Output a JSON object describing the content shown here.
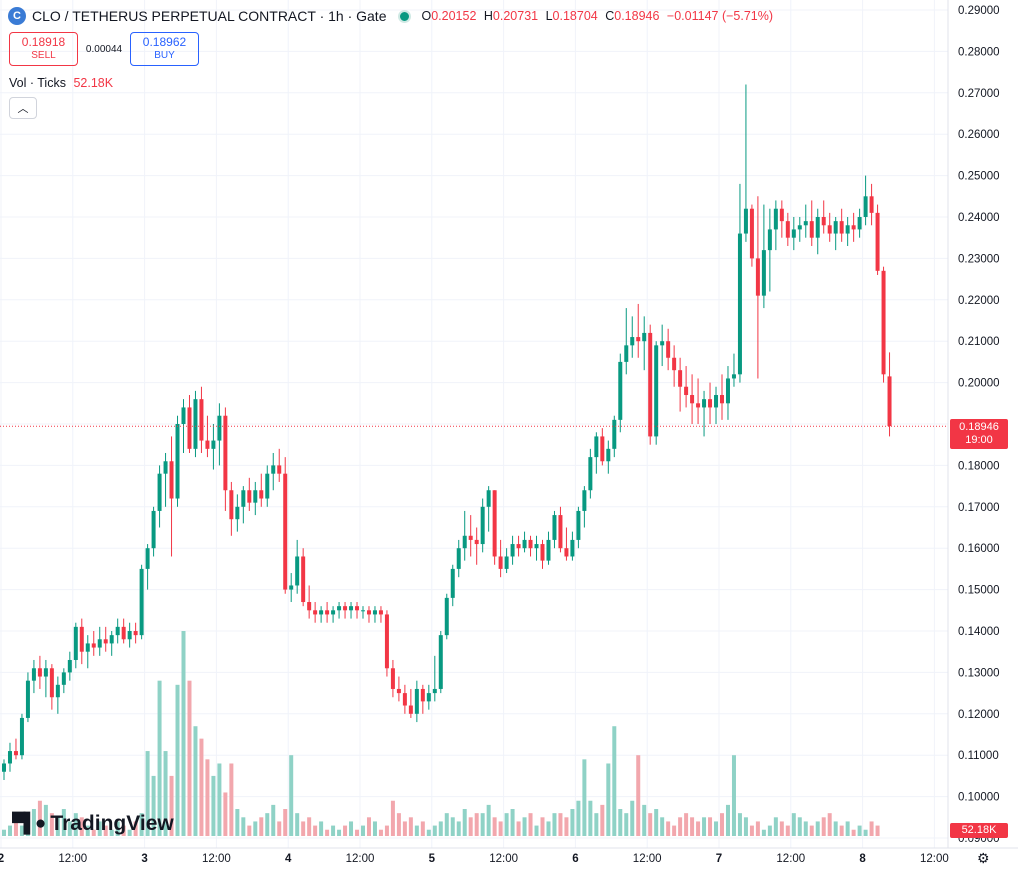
{
  "header": {
    "symbol_icon": "C",
    "title": "CLO / TETHERUS PERPETUAL CONTRACT · 1h · Gate",
    "o_label": "O",
    "o_value": "0.20152",
    "h_label": "H",
    "h_value": "0.20731",
    "l_label": "L",
    "l_value": "0.18704",
    "c_label": "C",
    "c_value": "0.18946",
    "change": "−0.01147 (−5.71%)"
  },
  "trade": {
    "sell_price": "0.18918",
    "sell_label": "SELL",
    "spread": "0.00044",
    "buy_price": "0.18962",
    "buy_label": "BUY"
  },
  "volume": {
    "label": "Vol · Ticks",
    "value": "52.18K"
  },
  "collapse_icon": "chevron-up-icon",
  "brand": {
    "logo_text": "TradingView"
  },
  "last_price": {
    "price": "0.18946",
    "countdown": "19:00"
  },
  "volume_tag": "52.18K",
  "colors": {
    "up": "#089981",
    "down": "#f23645",
    "up_vol": "#8fd2c6",
    "down_vol": "#f2a7ad",
    "grid": "#f0f3fa"
  },
  "chart_data": {
    "type": "candlestick",
    "y_ticks": [
      "0.29000",
      "0.28000",
      "0.27000",
      "0.26000",
      "0.25000",
      "0.24000",
      "0.23000",
      "0.22000",
      "0.21000",
      "0.20000",
      "0.19000",
      "0.18000",
      "0.17000",
      "0.16000",
      "0.15000",
      "0.14000",
      "0.13000",
      "0.12000",
      "0.11000",
      "0.10000",
      "0.09000"
    ],
    "x_ticks": [
      "2",
      "12:00",
      "3",
      "12:00",
      "4",
      "12:00",
      "5",
      "12:00",
      "6",
      "12:00",
      "7",
      "12:00",
      "8",
      "12:00"
    ],
    "ylim": [
      0.09,
      0.29
    ],
    "series": [
      {
        "o": 0.106,
        "h": 0.109,
        "l": 0.104,
        "c": 0.108
      },
      {
        "o": 0.108,
        "h": 0.113,
        "l": 0.106,
        "c": 0.111
      },
      {
        "o": 0.111,
        "h": 0.114,
        "l": 0.109,
        "c": 0.11
      },
      {
        "o": 0.11,
        "h": 0.12,
        "l": 0.109,
        "c": 0.119
      },
      {
        "o": 0.119,
        "h": 0.13,
        "l": 0.118,
        "c": 0.128
      },
      {
        "o": 0.128,
        "h": 0.133,
        "l": 0.125,
        "c": 0.131
      },
      {
        "o": 0.131,
        "h": 0.134,
        "l": 0.126,
        "c": 0.129
      },
      {
        "o": 0.129,
        "h": 0.133,
        "l": 0.124,
        "c": 0.131
      },
      {
        "o": 0.131,
        "h": 0.132,
        "l": 0.121,
        "c": 0.124
      },
      {
        "o": 0.124,
        "h": 0.129,
        "l": 0.12,
        "c": 0.127
      },
      {
        "o": 0.127,
        "h": 0.131,
        "l": 0.125,
        "c": 0.13
      },
      {
        "o": 0.13,
        "h": 0.135,
        "l": 0.128,
        "c": 0.133
      },
      {
        "o": 0.133,
        "h": 0.142,
        "l": 0.131,
        "c": 0.141
      },
      {
        "o": 0.141,
        "h": 0.143,
        "l": 0.132,
        "c": 0.135
      },
      {
        "o": 0.135,
        "h": 0.139,
        "l": 0.131,
        "c": 0.137
      },
      {
        "o": 0.137,
        "h": 0.14,
        "l": 0.134,
        "c": 0.136
      },
      {
        "o": 0.136,
        "h": 0.141,
        "l": 0.134,
        "c": 0.138
      },
      {
        "o": 0.138,
        "h": 0.141,
        "l": 0.135,
        "c": 0.137
      },
      {
        "o": 0.137,
        "h": 0.14,
        "l": 0.134,
        "c": 0.139
      },
      {
        "o": 0.139,
        "h": 0.143,
        "l": 0.137,
        "c": 0.141
      },
      {
        "o": 0.141,
        "h": 0.143,
        "l": 0.137,
        "c": 0.138
      },
      {
        "o": 0.138,
        "h": 0.142,
        "l": 0.136,
        "c": 0.14
      },
      {
        "o": 0.14,
        "h": 0.142,
        "l": 0.137,
        "c": 0.139
      },
      {
        "o": 0.139,
        "h": 0.156,
        "l": 0.138,
        "c": 0.155
      },
      {
        "o": 0.155,
        "h": 0.161,
        "l": 0.15,
        "c": 0.16
      },
      {
        "o": 0.16,
        "h": 0.17,
        "l": 0.158,
        "c": 0.169
      },
      {
        "o": 0.169,
        "h": 0.18,
        "l": 0.165,
        "c": 0.178
      },
      {
        "o": 0.178,
        "h": 0.183,
        "l": 0.17,
        "c": 0.181
      },
      {
        "o": 0.181,
        "h": 0.187,
        "l": 0.158,
        "c": 0.172
      },
      {
        "o": 0.172,
        "h": 0.192,
        "l": 0.17,
        "c": 0.19
      },
      {
        "o": 0.19,
        "h": 0.196,
        "l": 0.183,
        "c": 0.194
      },
      {
        "o": 0.194,
        "h": 0.197,
        "l": 0.183,
        "c": 0.184
      },
      {
        "o": 0.184,
        "h": 0.198,
        "l": 0.182,
        "c": 0.196
      },
      {
        "o": 0.196,
        "h": 0.199,
        "l": 0.183,
        "c": 0.186
      },
      {
        "o": 0.186,
        "h": 0.192,
        "l": 0.182,
        "c": 0.184
      },
      {
        "o": 0.184,
        "h": 0.19,
        "l": 0.179,
        "c": 0.186
      },
      {
        "o": 0.186,
        "h": 0.195,
        "l": 0.18,
        "c": 0.192
      },
      {
        "o": 0.192,
        "h": 0.194,
        "l": 0.169,
        "c": 0.174
      },
      {
        "o": 0.174,
        "h": 0.176,
        "l": 0.163,
        "c": 0.167
      },
      {
        "o": 0.167,
        "h": 0.173,
        "l": 0.164,
        "c": 0.17
      },
      {
        "o": 0.17,
        "h": 0.175,
        "l": 0.166,
        "c": 0.174
      },
      {
        "o": 0.174,
        "h": 0.177,
        "l": 0.169,
        "c": 0.171
      },
      {
        "o": 0.171,
        "h": 0.176,
        "l": 0.168,
        "c": 0.174
      },
      {
        "o": 0.174,
        "h": 0.178,
        "l": 0.17,
        "c": 0.172
      },
      {
        "o": 0.172,
        "h": 0.18,
        "l": 0.17,
        "c": 0.178
      },
      {
        "o": 0.178,
        "h": 0.183,
        "l": 0.174,
        "c": 0.18
      },
      {
        "o": 0.18,
        "h": 0.184,
        "l": 0.176,
        "c": 0.178
      },
      {
        "o": 0.178,
        "h": 0.182,
        "l": 0.149,
        "c": 0.15
      },
      {
        "o": 0.15,
        "h": 0.154,
        "l": 0.147,
        "c": 0.151
      },
      {
        "o": 0.151,
        "h": 0.162,
        "l": 0.149,
        "c": 0.158
      },
      {
        "o": 0.158,
        "h": 0.16,
        "l": 0.146,
        "c": 0.147
      },
      {
        "o": 0.147,
        "h": 0.151,
        "l": 0.143,
        "c": 0.145
      },
      {
        "o": 0.145,
        "h": 0.147,
        "l": 0.142,
        "c": 0.144
      },
      {
        "o": 0.144,
        "h": 0.146,
        "l": 0.142,
        "c": 0.145
      },
      {
        "o": 0.145,
        "h": 0.147,
        "l": 0.142,
        "c": 0.144
      },
      {
        "o": 0.144,
        "h": 0.146,
        "l": 0.142,
        "c": 0.145
      },
      {
        "o": 0.145,
        "h": 0.147,
        "l": 0.143,
        "c": 0.146
      },
      {
        "o": 0.146,
        "h": 0.147,
        "l": 0.143,
        "c": 0.145
      },
      {
        "o": 0.145,
        "h": 0.147,
        "l": 0.143,
        "c": 0.146
      },
      {
        "o": 0.146,
        "h": 0.147,
        "l": 0.143,
        "c": 0.145
      },
      {
        "o": 0.145,
        "h": 0.146,
        "l": 0.143,
        "c": 0.145
      },
      {
        "o": 0.145,
        "h": 0.146,
        "l": 0.142,
        "c": 0.144
      },
      {
        "o": 0.144,
        "h": 0.146,
        "l": 0.142,
        "c": 0.145
      },
      {
        "o": 0.145,
        "h": 0.146,
        "l": 0.142,
        "c": 0.144
      },
      {
        "o": 0.144,
        "h": 0.145,
        "l": 0.129,
        "c": 0.131
      },
      {
        "o": 0.131,
        "h": 0.133,
        "l": 0.124,
        "c": 0.126
      },
      {
        "o": 0.126,
        "h": 0.129,
        "l": 0.123,
        "c": 0.125
      },
      {
        "o": 0.125,
        "h": 0.127,
        "l": 0.12,
        "c": 0.122
      },
      {
        "o": 0.122,
        "h": 0.126,
        "l": 0.119,
        "c": 0.12
      },
      {
        "o": 0.12,
        "h": 0.128,
        "l": 0.118,
        "c": 0.126
      },
      {
        "o": 0.126,
        "h": 0.127,
        "l": 0.12,
        "c": 0.123
      },
      {
        "o": 0.123,
        "h": 0.127,
        "l": 0.121,
        "c": 0.125
      },
      {
        "o": 0.125,
        "h": 0.134,
        "l": 0.123,
        "c": 0.126
      },
      {
        "o": 0.126,
        "h": 0.14,
        "l": 0.125,
        "c": 0.139
      },
      {
        "o": 0.139,
        "h": 0.149,
        "l": 0.138,
        "c": 0.148
      },
      {
        "o": 0.148,
        "h": 0.156,
        "l": 0.146,
        "c": 0.155
      },
      {
        "o": 0.155,
        "h": 0.162,
        "l": 0.153,
        "c": 0.16
      },
      {
        "o": 0.16,
        "h": 0.169,
        "l": 0.157,
        "c": 0.163
      },
      {
        "o": 0.163,
        "h": 0.168,
        "l": 0.158,
        "c": 0.162
      },
      {
        "o": 0.162,
        "h": 0.165,
        "l": 0.156,
        "c": 0.161
      },
      {
        "o": 0.161,
        "h": 0.172,
        "l": 0.159,
        "c": 0.17
      },
      {
        "o": 0.17,
        "h": 0.175,
        "l": 0.164,
        "c": 0.174
      },
      {
        "o": 0.174,
        "h": 0.174,
        "l": 0.156,
        "c": 0.158
      },
      {
        "o": 0.158,
        "h": 0.162,
        "l": 0.153,
        "c": 0.155
      },
      {
        "o": 0.155,
        "h": 0.16,
        "l": 0.154,
        "c": 0.158
      },
      {
        "o": 0.158,
        "h": 0.163,
        "l": 0.156,
        "c": 0.161
      },
      {
        "o": 0.161,
        "h": 0.163,
        "l": 0.158,
        "c": 0.16
      },
      {
        "o": 0.16,
        "h": 0.164,
        "l": 0.159,
        "c": 0.162
      },
      {
        "o": 0.162,
        "h": 0.163,
        "l": 0.158,
        "c": 0.16
      },
      {
        "o": 0.16,
        "h": 0.163,
        "l": 0.157,
        "c": 0.161
      },
      {
        "o": 0.161,
        "h": 0.162,
        "l": 0.155,
        "c": 0.157
      },
      {
        "o": 0.157,
        "h": 0.164,
        "l": 0.156,
        "c": 0.162
      },
      {
        "o": 0.162,
        "h": 0.169,
        "l": 0.16,
        "c": 0.168
      },
      {
        "o": 0.168,
        "h": 0.17,
        "l": 0.159,
        "c": 0.16
      },
      {
        "o": 0.16,
        "h": 0.165,
        "l": 0.157,
        "c": 0.158
      },
      {
        "o": 0.158,
        "h": 0.164,
        "l": 0.157,
        "c": 0.162
      },
      {
        "o": 0.162,
        "h": 0.17,
        "l": 0.16,
        "c": 0.169
      },
      {
        "o": 0.169,
        "h": 0.175,
        "l": 0.165,
        "c": 0.174
      },
      {
        "o": 0.174,
        "h": 0.184,
        "l": 0.172,
        "c": 0.182
      },
      {
        "o": 0.182,
        "h": 0.188,
        "l": 0.178,
        "c": 0.187
      },
      {
        "o": 0.187,
        "h": 0.189,
        "l": 0.18,
        "c": 0.181
      },
      {
        "o": 0.181,
        "h": 0.186,
        "l": 0.178,
        "c": 0.184
      },
      {
        "o": 0.184,
        "h": 0.192,
        "l": 0.182,
        "c": 0.191
      },
      {
        "o": 0.191,
        "h": 0.207,
        "l": 0.188,
        "c": 0.205
      },
      {
        "o": 0.205,
        "h": 0.218,
        "l": 0.202,
        "c": 0.209
      },
      {
        "o": 0.209,
        "h": 0.216,
        "l": 0.206,
        "c": 0.211
      },
      {
        "o": 0.211,
        "h": 0.219,
        "l": 0.206,
        "c": 0.21
      },
      {
        "o": 0.21,
        "h": 0.216,
        "l": 0.203,
        "c": 0.212
      },
      {
        "o": 0.212,
        "h": 0.214,
        "l": 0.185,
        "c": 0.187
      },
      {
        "o": 0.187,
        "h": 0.21,
        "l": 0.185,
        "c": 0.209
      },
      {
        "o": 0.209,
        "h": 0.214,
        "l": 0.204,
        "c": 0.21
      },
      {
        "o": 0.21,
        "h": 0.213,
        "l": 0.203,
        "c": 0.206
      },
      {
        "o": 0.206,
        "h": 0.209,
        "l": 0.199,
        "c": 0.203
      },
      {
        "o": 0.203,
        "h": 0.206,
        "l": 0.193,
        "c": 0.199
      },
      {
        "o": 0.199,
        "h": 0.204,
        "l": 0.194,
        "c": 0.197
      },
      {
        "o": 0.197,
        "h": 0.202,
        "l": 0.19,
        "c": 0.195
      },
      {
        "o": 0.195,
        "h": 0.201,
        "l": 0.19,
        "c": 0.194
      },
      {
        "o": 0.194,
        "h": 0.198,
        "l": 0.187,
        "c": 0.196
      },
      {
        "o": 0.196,
        "h": 0.2,
        "l": 0.19,
        "c": 0.194
      },
      {
        "o": 0.194,
        "h": 0.199,
        "l": 0.19,
        "c": 0.197
      },
      {
        "o": 0.197,
        "h": 0.202,
        "l": 0.191,
        "c": 0.195
      },
      {
        "o": 0.195,
        "h": 0.204,
        "l": 0.191,
        "c": 0.201
      },
      {
        "o": 0.201,
        "h": 0.207,
        "l": 0.199,
        "c": 0.202
      },
      {
        "o": 0.202,
        "h": 0.248,
        "l": 0.2,
        "c": 0.236
      },
      {
        "o": 0.236,
        "h": 0.272,
        "l": 0.234,
        "c": 0.242
      },
      {
        "o": 0.242,
        "h": 0.243,
        "l": 0.228,
        "c": 0.23
      },
      {
        "o": 0.23,
        "h": 0.245,
        "l": 0.201,
        "c": 0.221
      },
      {
        "o": 0.221,
        "h": 0.243,
        "l": 0.218,
        "c": 0.232
      },
      {
        "o": 0.232,
        "h": 0.242,
        "l": 0.222,
        "c": 0.237
      },
      {
        "o": 0.237,
        "h": 0.244,
        "l": 0.232,
        "c": 0.242
      },
      {
        "o": 0.242,
        "h": 0.244,
        "l": 0.235,
        "c": 0.239
      },
      {
        "o": 0.239,
        "h": 0.241,
        "l": 0.233,
        "c": 0.235
      },
      {
        "o": 0.235,
        "h": 0.24,
        "l": 0.232,
        "c": 0.237
      },
      {
        "o": 0.237,
        "h": 0.24,
        "l": 0.234,
        "c": 0.238
      },
      {
        "o": 0.238,
        "h": 0.243,
        "l": 0.235,
        "c": 0.239
      },
      {
        "o": 0.239,
        "h": 0.244,
        "l": 0.233,
        "c": 0.235
      },
      {
        "o": 0.235,
        "h": 0.242,
        "l": 0.231,
        "c": 0.24
      },
      {
        "o": 0.24,
        "h": 0.244,
        "l": 0.236,
        "c": 0.238
      },
      {
        "o": 0.238,
        "h": 0.241,
        "l": 0.234,
        "c": 0.236
      },
      {
        "o": 0.236,
        "h": 0.24,
        "l": 0.232,
        "c": 0.239
      },
      {
        "o": 0.239,
        "h": 0.242,
        "l": 0.234,
        "c": 0.236
      },
      {
        "o": 0.236,
        "h": 0.24,
        "l": 0.233,
        "c": 0.238
      },
      {
        "o": 0.238,
        "h": 0.241,
        "l": 0.234,
        "c": 0.237
      },
      {
        "o": 0.237,
        "h": 0.242,
        "l": 0.235,
        "c": 0.24
      },
      {
        "o": 0.24,
        "h": 0.25,
        "l": 0.238,
        "c": 0.245
      },
      {
        "o": 0.245,
        "h": 0.248,
        "l": 0.238,
        "c": 0.241
      },
      {
        "o": 0.241,
        "h": 0.243,
        "l": 0.226,
        "c": 0.227
      },
      {
        "o": 0.227,
        "h": 0.228,
        "l": 0.2,
        "c": 0.202
      },
      {
        "o": 0.2015,
        "h": 0.2073,
        "l": 0.187,
        "c": 0.1895
      }
    ],
    "volume": [
      0.092,
      0.093,
      0.095,
      0.093,
      0.095,
      0.097,
      0.099,
      0.098,
      0.096,
      0.095,
      0.097,
      0.094,
      0.096,
      0.095,
      0.093,
      0.092,
      0.094,
      0.093,
      0.092,
      0.094,
      0.093,
      0.092,
      0.094,
      0.096,
      0.111,
      0.105,
      0.128,
      0.111,
      0.105,
      0.127,
      0.14,
      0.128,
      0.117,
      0.114,
      0.109,
      0.105,
      0.108,
      0.101,
      0.108,
      0.097,
      0.095,
      0.093,
      0.094,
      0.095,
      0.096,
      0.098,
      0.094,
      0.097,
      0.11,
      0.096,
      0.094,
      0.095,
      0.093,
      0.094,
      0.092,
      0.093,
      0.092,
      0.093,
      0.094,
      0.092,
      0.093,
      0.095,
      0.094,
      0.092,
      0.093,
      0.099,
      0.096,
      0.094,
      0.095,
      0.093,
      0.094,
      0.092,
      0.093,
      0.094,
      0.096,
      0.095,
      0.094,
      0.097,
      0.095,
      0.096,
      0.096,
      0.098,
      0.095,
      0.094,
      0.096,
      0.097,
      0.094,
      0.095,
      0.096,
      0.093,
      0.095,
      0.094,
      0.096,
      0.096,
      0.095,
      0.097,
      0.099,
      0.109,
      0.099,
      0.096,
      0.098,
      0.108,
      0.117,
      0.097,
      0.096,
      0.099,
      0.11,
      0.098,
      0.096,
      0.097,
      0.095,
      0.094,
      0.093,
      0.095,
      0.096,
      0.095,
      0.094,
      0.095,
      0.095,
      0.094,
      0.096,
      0.098,
      0.11,
      0.096,
      0.095,
      0.093,
      0.094,
      0.092,
      0.093,
      0.095,
      0.094,
      0.093,
      0.096,
      0.095,
      0.094,
      0.093,
      0.094,
      0.095,
      0.096,
      0.094,
      0.093,
      0.094,
      0.092,
      0.093,
      0.092,
      0.094,
      0.093
    ],
    "last_close": 0.18946
  }
}
